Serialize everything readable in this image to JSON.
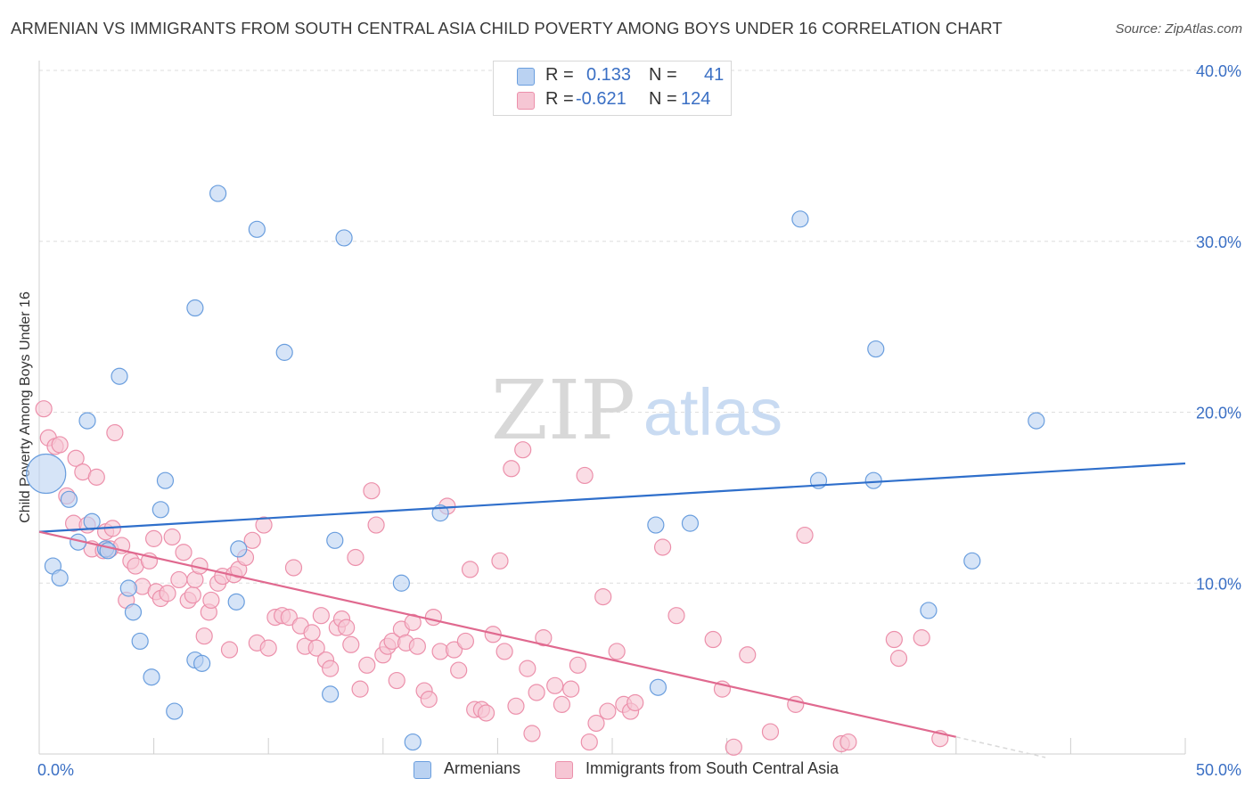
{
  "title": "ARMENIAN VS IMMIGRANTS FROM SOUTH CENTRAL ASIA CHILD POVERTY AMONG BOYS UNDER 16 CORRELATION CHART",
  "source": "Source: ZipAtlas.com",
  "watermark": {
    "zip": "ZIP",
    "atlas": "atlas"
  },
  "legend_top": {
    "r_label": "R =",
    "n_label": "N =",
    "rows": [
      {
        "r": "0.133",
        "n": "41"
      },
      {
        "r": "-0.621",
        "n": "124"
      }
    ]
  },
  "chart_data": {
    "type": "scatter",
    "title": "ARMENIAN VS IMMIGRANTS FROM SOUTH CENTRAL ASIA CHILD POVERTY AMONG BOYS UNDER 16 CORRELATION CHART",
    "xlabel": "",
    "ylabel": "Child Poverty Among Boys Under 16",
    "xlim": [
      0,
      50
    ],
    "ylim": [
      0,
      40
    ],
    "x_tick_labels": [
      {
        "value": 0,
        "label": "0.0%"
      },
      {
        "value": 50,
        "label": "50.0%"
      }
    ],
    "y_tick_labels": [
      {
        "value": 10,
        "label": "10.0%"
      },
      {
        "value": 20,
        "label": "20.0%"
      },
      {
        "value": 30,
        "label": "30.0%"
      },
      {
        "value": 40,
        "label": "40.0%"
      }
    ],
    "grid": true,
    "legend_position": "bottom",
    "series": [
      {
        "name": "Armenians",
        "color": "#6a9ede",
        "fill": "#bad2f2",
        "line_color": "#2f6fcb",
        "stats": {
          "R": 0.133,
          "N": 41
        },
        "trend": {
          "x": [
            0,
            50
          ],
          "y": [
            13.0,
            17.0
          ]
        },
        "points": [
          [
            0.3,
            16.4,
            "large"
          ],
          [
            0.6,
            11.0
          ],
          [
            0.9,
            10.3
          ],
          [
            1.3,
            14.9
          ],
          [
            1.7,
            12.4
          ],
          [
            2.1,
            19.5
          ],
          [
            2.3,
            13.6
          ],
          [
            2.9,
            12.0
          ],
          [
            3.5,
            22.1
          ],
          [
            3.9,
            9.7
          ],
          [
            4.1,
            8.3
          ],
          [
            4.4,
            6.6
          ],
          [
            4.9,
            4.5
          ],
          [
            5.3,
            14.3
          ],
          [
            5.5,
            16.0
          ],
          [
            5.9,
            2.5
          ],
          [
            6.8,
            26.1
          ],
          [
            6.8,
            5.5
          ],
          [
            7.1,
            5.3
          ],
          [
            7.8,
            32.8
          ],
          [
            8.6,
            8.9
          ],
          [
            8.7,
            12.0
          ],
          [
            9.5,
            30.7
          ],
          [
            10.7,
            23.5
          ],
          [
            12.7,
            3.5
          ],
          [
            12.9,
            12.5
          ],
          [
            13.3,
            30.2
          ],
          [
            15.8,
            10.0
          ],
          [
            16.3,
            0.7
          ],
          [
            17.5,
            14.1
          ],
          [
            26.9,
            13.4
          ],
          [
            27.0,
            3.9
          ],
          [
            28.4,
            13.5
          ],
          [
            33.2,
            31.3
          ],
          [
            34.0,
            16.0
          ],
          [
            36.4,
            16.0
          ],
          [
            36.5,
            23.7
          ],
          [
            38.8,
            8.4
          ],
          [
            40.7,
            11.3
          ],
          [
            43.5,
            19.5
          ],
          [
            3.0,
            11.9
          ]
        ]
      },
      {
        "name": "Immigrants from South Central Asia",
        "color": "#ec90ab",
        "fill": "#f6c6d4",
        "line_color": "#e0698f",
        "stats": {
          "R": -0.621,
          "N": 124
        },
        "trend": {
          "x": [
            0,
            40.0
          ],
          "y": [
            13.0,
            1.0
          ]
        },
        "trend_dashed": {
          "x": [
            40.0,
            43.9
          ],
          "y": [
            1.0,
            -0.2
          ]
        },
        "points": [
          [
            0.2,
            20.2
          ],
          [
            0.4,
            18.5
          ],
          [
            0.7,
            18.0
          ],
          [
            0.9,
            18.1
          ],
          [
            1.2,
            15.1
          ],
          [
            1.5,
            13.5
          ],
          [
            1.6,
            17.3
          ],
          [
            1.9,
            16.5
          ],
          [
            2.1,
            13.4
          ],
          [
            2.3,
            12.0
          ],
          [
            2.5,
            16.2
          ],
          [
            2.8,
            11.9
          ],
          [
            2.9,
            13.0
          ],
          [
            3.1,
            12.0
          ],
          [
            3.2,
            13.2
          ],
          [
            3.3,
            18.8
          ],
          [
            3.6,
            12.2
          ],
          [
            3.8,
            9.0
          ],
          [
            4.0,
            11.3
          ],
          [
            4.2,
            11.0
          ],
          [
            4.5,
            9.8
          ],
          [
            4.8,
            11.3
          ],
          [
            5.0,
            12.6
          ],
          [
            5.1,
            9.5
          ],
          [
            5.3,
            9.1
          ],
          [
            5.6,
            9.4
          ],
          [
            5.8,
            12.7
          ],
          [
            6.1,
            10.2
          ],
          [
            6.3,
            11.8
          ],
          [
            6.5,
            9.0
          ],
          [
            6.7,
            9.3
          ],
          [
            6.8,
            10.2
          ],
          [
            7.0,
            11.0
          ],
          [
            7.2,
            6.9
          ],
          [
            7.4,
            8.3
          ],
          [
            7.5,
            9.0
          ],
          [
            7.8,
            10.0
          ],
          [
            8.0,
            10.4
          ],
          [
            8.3,
            6.1
          ],
          [
            8.5,
            10.5
          ],
          [
            8.7,
            10.8
          ],
          [
            9.0,
            11.5
          ],
          [
            9.3,
            12.5
          ],
          [
            9.5,
            6.5
          ],
          [
            9.8,
            13.4
          ],
          [
            10.0,
            6.2
          ],
          [
            10.3,
            8.0
          ],
          [
            10.6,
            8.1
          ],
          [
            10.9,
            8.0
          ],
          [
            11.1,
            10.9
          ],
          [
            11.4,
            7.5
          ],
          [
            11.6,
            6.3
          ],
          [
            11.9,
            7.1
          ],
          [
            12.1,
            6.2
          ],
          [
            12.3,
            8.1
          ],
          [
            12.5,
            5.5
          ],
          [
            12.7,
            5.0
          ],
          [
            13.0,
            7.4
          ],
          [
            13.2,
            7.9
          ],
          [
            13.4,
            7.4
          ],
          [
            13.6,
            6.4
          ],
          [
            13.8,
            11.5
          ],
          [
            14.0,
            3.8
          ],
          [
            14.3,
            5.2
          ],
          [
            14.5,
            15.4
          ],
          [
            14.7,
            13.4
          ],
          [
            15.0,
            5.8
          ],
          [
            15.2,
            6.3
          ],
          [
            15.4,
            6.6
          ],
          [
            15.6,
            4.3
          ],
          [
            15.8,
            7.3
          ],
          [
            16.0,
            6.5
          ],
          [
            16.3,
            7.7
          ],
          [
            16.5,
            6.3
          ],
          [
            16.8,
            3.7
          ],
          [
            17.0,
            3.2
          ],
          [
            17.2,
            8.0
          ],
          [
            17.5,
            6.0
          ],
          [
            17.8,
            14.5
          ],
          [
            18.1,
            6.1
          ],
          [
            18.3,
            4.9
          ],
          [
            18.6,
            6.6
          ],
          [
            18.8,
            10.8
          ],
          [
            19.0,
            2.6
          ],
          [
            19.3,
            2.6
          ],
          [
            19.5,
            2.4
          ],
          [
            19.8,
            7.0
          ],
          [
            20.1,
            11.3
          ],
          [
            20.3,
            6.0
          ],
          [
            20.6,
            16.7
          ],
          [
            20.8,
            2.8
          ],
          [
            21.1,
            17.8
          ],
          [
            21.3,
            5.0
          ],
          [
            21.5,
            1.2
          ],
          [
            21.7,
            3.6
          ],
          [
            22.0,
            6.8
          ],
          [
            22.5,
            4.0
          ],
          [
            22.8,
            2.9
          ],
          [
            23.2,
            3.8
          ],
          [
            23.5,
            5.2
          ],
          [
            23.8,
            16.3
          ],
          [
            24.0,
            0.7
          ],
          [
            24.3,
            1.8
          ],
          [
            24.6,
            9.2
          ],
          [
            24.8,
            2.5
          ],
          [
            25.2,
            6.0
          ],
          [
            25.5,
            2.9
          ],
          [
            25.8,
            2.5
          ],
          [
            26.0,
            3.0
          ],
          [
            27.2,
            12.1
          ],
          [
            27.8,
            8.1
          ],
          [
            29.4,
            6.7
          ],
          [
            29.8,
            3.8
          ],
          [
            30.3,
            0.4
          ],
          [
            30.9,
            5.8
          ],
          [
            31.9,
            1.3
          ],
          [
            33.0,
            2.9
          ],
          [
            33.4,
            12.8
          ],
          [
            35.0,
            0.6
          ],
          [
            35.3,
            0.7
          ],
          [
            37.3,
            6.7
          ],
          [
            37.5,
            5.6
          ],
          [
            38.5,
            6.8
          ],
          [
            39.3,
            0.9
          ]
        ]
      }
    ]
  },
  "legend_bottom": [
    {
      "label": "Armenians"
    },
    {
      "label": "Immigrants from South Central Asia"
    }
  ]
}
